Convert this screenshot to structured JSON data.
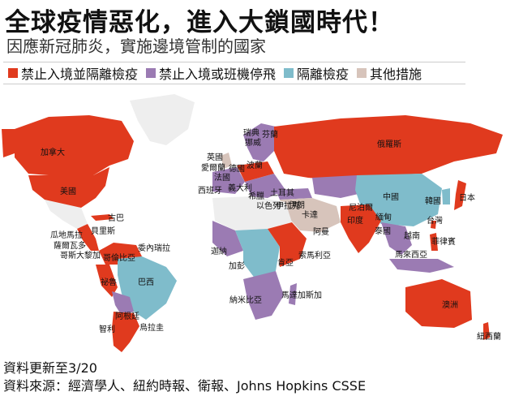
{
  "title": "全球疫情惡化，進入大鎖國時代！",
  "subtitle": "因應新冠肺炎，實施邊境管制的國家",
  "legend": [
    {
      "label": "禁止入境並隔離檢疫",
      "color": "#e03a1e"
    },
    {
      "label": "禁止入境或班機停飛",
      "color": "#9b7bb3"
    },
    {
      "label": "隔離檢疫",
      "color": "#7fbccb"
    },
    {
      "label": "其他措施",
      "color": "#d7c4bb"
    }
  ],
  "countries": [
    {
      "name": "加拿大",
      "status": "禁止入境並隔離檢疫"
    },
    {
      "name": "美國",
      "status": "禁止入境並隔離檢疫"
    },
    {
      "name": "古巴",
      "status": "禁止入境並隔離檢疫"
    },
    {
      "name": "瓜地馬拉",
      "status": "禁止入境並隔離檢疫"
    },
    {
      "name": "貝里斯",
      "status": "禁止入境並隔離檢疫"
    },
    {
      "name": "薩爾瓦多",
      "status": "禁止入境並隔離檢疫"
    },
    {
      "name": "哥斯大黎加",
      "status": "禁止入境並隔離檢疫"
    },
    {
      "name": "委內瑞拉",
      "status": "禁止入境並隔離檢疫"
    },
    {
      "name": "哥倫比亞",
      "status": "禁止入境並隔離檢疫"
    },
    {
      "name": "祕魯",
      "status": "禁止入境並隔離檢疫"
    },
    {
      "name": "巴西",
      "status": "隔離檢疫"
    },
    {
      "name": "阿根廷",
      "status": "禁止入境並隔離檢疫"
    },
    {
      "name": "智利",
      "status": "禁止入境並隔離檢疫"
    },
    {
      "name": "烏拉圭",
      "status": "禁止入境並隔離檢疫"
    },
    {
      "name": "瑞典",
      "status": "其他措施"
    },
    {
      "name": "芬蘭",
      "status": "禁止入境或班機停飛"
    },
    {
      "name": "挪威",
      "status": "禁止入境並隔離檢疫"
    },
    {
      "name": "英國",
      "status": "其他措施"
    },
    {
      "name": "愛爾蘭",
      "status": "其他措施"
    },
    {
      "name": "德國",
      "status": "禁止入境或班機停飛"
    },
    {
      "name": "波蘭",
      "status": "禁止入境並隔離檢疫"
    },
    {
      "name": "法國",
      "status": "禁止入境或班機停飛"
    },
    {
      "name": "西班牙",
      "status": "禁止入境或班機停飛"
    },
    {
      "name": "義大利",
      "status": "禁止入境或班機停飛"
    },
    {
      "name": "希臘",
      "status": "禁止入境或班機停飛"
    },
    {
      "name": "土耳其",
      "status": "禁止入境或班機停飛"
    },
    {
      "name": "以色列",
      "status": "禁止入境並隔離檢疫"
    },
    {
      "name": "伊朗",
      "status": "其他措施"
    },
    {
      "name": "伊拉克",
      "status": "禁止入境或班機停飛"
    },
    {
      "name": "卡達",
      "status": "禁止入境並隔離檢疫"
    },
    {
      "name": "阿曼",
      "status": "禁止入境並隔離檢疫"
    },
    {
      "name": "俄羅斯",
      "status": "禁止入境並隔離檢疫"
    },
    {
      "name": "中國",
      "status": "隔離檢疫"
    },
    {
      "name": "韓國",
      "status": "隔離檢疫"
    },
    {
      "name": "日本",
      "status": "禁止入境並隔離檢疫"
    },
    {
      "name": "台灣",
      "status": "禁止入境並隔離檢疫"
    },
    {
      "name": "印度",
      "status": "禁止入境並隔離檢疫"
    },
    {
      "name": "尼泊爾",
      "status": "禁止入境並隔離檢疫"
    },
    {
      "name": "緬甸",
      "status": "禁止入境或班機停飛"
    },
    {
      "name": "泰國",
      "status": "禁止入境或班機停飛"
    },
    {
      "name": "越南",
      "status": "禁止入境並隔離檢疫"
    },
    {
      "name": "菲律賓",
      "status": "禁止入境並隔離檢疫"
    },
    {
      "name": "馬來西亞",
      "status": "禁止入境並隔離檢疫"
    },
    {
      "name": "澳洲",
      "status": "禁止入境並隔離檢疫"
    },
    {
      "name": "紐西蘭",
      "status": "禁止入境並隔離檢疫"
    },
    {
      "name": "迦納",
      "status": "禁止入境並隔離檢疫"
    },
    {
      "name": "加彭",
      "status": "禁止入境或班機停飛"
    },
    {
      "name": "肯亞",
      "status": "禁止入境或班機停飛"
    },
    {
      "name": "索馬利亞",
      "status": "禁止入境並隔離檢疫"
    },
    {
      "name": "納米比亞",
      "status": "禁止入境並隔離檢疫"
    },
    {
      "name": "馬達加斯加",
      "status": "禁止入境或班機停飛"
    }
  ],
  "labels": {
    "canada": "加拿大",
    "usa": "美國",
    "cuba": "古巴",
    "guatemala": "瓜地馬拉",
    "belize": "貝里斯",
    "elsalvador": "薩爾瓦多",
    "costarica": "哥斯大黎加",
    "venezuela": "委內瑞拉",
    "colombia": "哥倫比亞",
    "peru": "祕魯",
    "brazil": "巴西",
    "argentina": "阿根廷",
    "chile": "智利",
    "uruguay": "烏拉圭",
    "sweden": "瑞典",
    "finland": "芬蘭",
    "norway": "挪威",
    "uk": "英國",
    "ireland": "愛爾蘭",
    "germany": "德國",
    "poland": "波蘭",
    "france": "法國",
    "spain": "西班牙",
    "italy": "義大利",
    "greece": "希臘",
    "turkey": "土耳其",
    "israel": "以色列",
    "iran": "伊朗",
    "iraq": "伊拉克",
    "qatar": "卡達",
    "oman": "阿曼",
    "russia": "俄羅斯",
    "china": "中國",
    "korea": "韓國",
    "japan": "日本",
    "taiwan": "台灣",
    "india": "印度",
    "nepal": "尼泊爾",
    "myanmar": "緬甸",
    "thailand": "泰國",
    "vietnam": "越南",
    "philippines": "菲律賓",
    "malaysia": "馬來西亞",
    "australia": "澳洲",
    "newzealand": "紐西蘭",
    "ghana": "迦納",
    "gabon": "加彭",
    "kenya": "肯亞",
    "somalia": "索馬利亞",
    "namibia": "納米比亞",
    "madagascar": "馬達加斯加"
  },
  "footer": {
    "updated": "資料更新至3/20",
    "source": "資料來源：經濟學人、紐約時報、衛報、Johns Hopkins CSSE"
  },
  "colors": {
    "ban_quarantine": "#e03a1e",
    "ban_or_flight": "#9b7bb3",
    "quarantine": "#7fbccb",
    "other": "#d7c4bb",
    "no_measure": "#eeeeee"
  }
}
